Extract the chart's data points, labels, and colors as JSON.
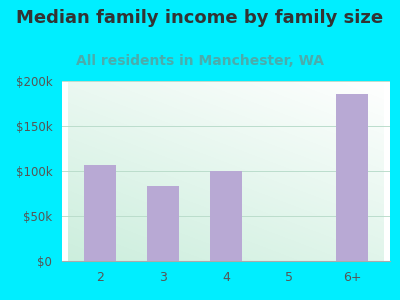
{
  "title": "Median family income by family size",
  "subtitle": "All residents in Manchester, WA",
  "categories": [
    "2",
    "3",
    "4",
    "5",
    "6+"
  ],
  "values": [
    107000,
    83000,
    100000,
    0,
    185000
  ],
  "bar_color": "#b8a9d4",
  "title_color": "#333333",
  "subtitle_color": "#4aacac",
  "bg_color": "#00eeff",
  "plot_bg_topleft": "#cceedd",
  "plot_bg_bottomright": "#ffffff",
  "ylim": [
    0,
    200000
  ],
  "yticks": [
    0,
    50000,
    100000,
    150000,
    200000
  ],
  "ytick_labels": [
    "$0",
    "$50k",
    "$100k",
    "$150k",
    "$200k"
  ],
  "title_fontsize": 13,
  "subtitle_fontsize": 10,
  "tick_label_color": "#555555",
  "grid_color": "#bbddcc"
}
